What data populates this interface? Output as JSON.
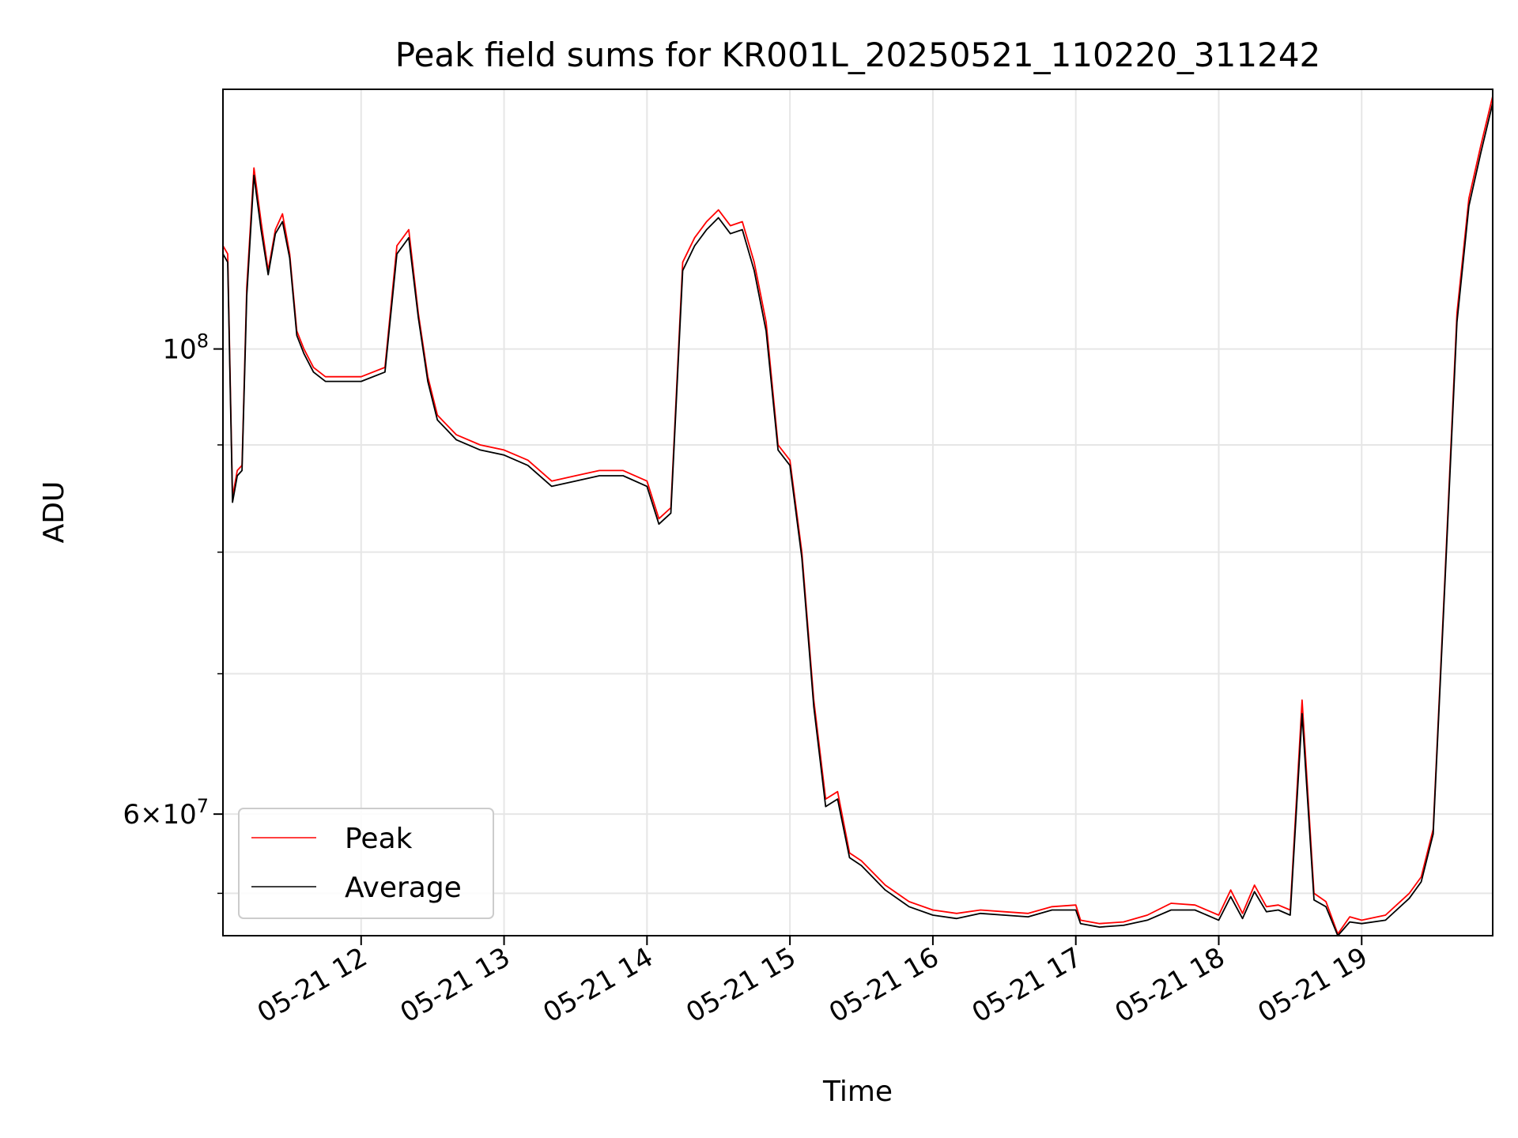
{
  "chart_data": {
    "type": "line",
    "title": "Peak field sums for KR001L_20250521_110220_311242",
    "xlabel": "Time",
    "ylabel": "ADU",
    "yscale": "log",
    "xlim": [
      "2025-05-21 11:02",
      "2025-05-21 19:55"
    ],
    "ylim": [
      52500000,
      133000000
    ],
    "grid": true,
    "legend_position": "lower-left",
    "x_ticks": [
      "05-21 12",
      "05-21 13",
      "05-21 14",
      "05-21 15",
      "05-21 16",
      "05-21 17",
      "05-21 18",
      "05-21 19"
    ],
    "y_ticks_major": [
      {
        "value": 100000000,
        "label": "10^8"
      },
      {
        "value": 60000000,
        "label": "6×10^7"
      }
    ],
    "y_ticks_minor": [
      55000000,
      70000000,
      80000000,
      90000000
    ],
    "x": [
      "2025-05-21 11:02",
      "2025-05-21 11:04",
      "2025-05-21 11:06",
      "2025-05-21 11:08",
      "2025-05-21 11:10",
      "2025-05-21 11:12",
      "2025-05-21 11:15",
      "2025-05-21 11:18",
      "2025-05-21 11:21",
      "2025-05-21 11:24",
      "2025-05-21 11:27",
      "2025-05-21 11:30",
      "2025-05-21 11:33",
      "2025-05-21 11:36",
      "2025-05-21 11:40",
      "2025-05-21 11:45",
      "2025-05-21 11:50",
      "2025-05-21 12:00",
      "2025-05-21 12:10",
      "2025-05-21 12:15",
      "2025-05-21 12:20",
      "2025-05-21 12:24",
      "2025-05-21 12:28",
      "2025-05-21 12:32",
      "2025-05-21 12:36",
      "2025-05-21 12:40",
      "2025-05-21 12:50",
      "2025-05-21 13:00",
      "2025-05-21 13:10",
      "2025-05-21 13:20",
      "2025-05-21 13:30",
      "2025-05-21 13:40",
      "2025-05-21 13:50",
      "2025-05-21 14:00",
      "2025-05-21 14:05",
      "2025-05-21 14:10",
      "2025-05-21 14:15",
      "2025-05-21 14:20",
      "2025-05-21 14:25",
      "2025-05-21 14:30",
      "2025-05-21 14:35",
      "2025-05-21 14:40",
      "2025-05-21 14:45",
      "2025-05-21 14:50",
      "2025-05-21 14:55",
      "2025-05-21 15:00",
      "2025-05-21 15:05",
      "2025-05-21 15:10",
      "2025-05-21 15:15",
      "2025-05-21 15:20",
      "2025-05-21 15:25",
      "2025-05-21 15:30",
      "2025-05-21 15:40",
      "2025-05-21 15:50",
      "2025-05-21 16:00",
      "2025-05-21 16:10",
      "2025-05-21 16:20",
      "2025-05-21 16:30",
      "2025-05-21 16:40",
      "2025-05-21 16:50",
      "2025-05-21 17:00",
      "2025-05-21 17:02",
      "2025-05-21 17:10",
      "2025-05-21 17:20",
      "2025-05-21 17:30",
      "2025-05-21 17:40",
      "2025-05-21 17:50",
      "2025-05-21 18:00",
      "2025-05-21 18:05",
      "2025-05-21 18:10",
      "2025-05-21 18:15",
      "2025-05-21 18:20",
      "2025-05-21 18:25",
      "2025-05-21 18:30",
      "2025-05-21 18:35",
      "2025-05-21 18:40",
      "2025-05-21 18:45",
      "2025-05-21 18:50",
      "2025-05-21 18:55",
      "2025-05-21 19:00",
      "2025-05-21 19:10",
      "2025-05-21 19:20",
      "2025-05-21 19:25",
      "2025-05-21 19:30",
      "2025-05-21 19:35",
      "2025-05-21 19:40",
      "2025-05-21 19:45",
      "2025-05-21 19:50",
      "2025-05-21 19:55"
    ],
    "series": [
      {
        "name": "Peak",
        "color": "#ff0000",
        "values": [
          112000000,
          111000000,
          85000000,
          87500000,
          88000000,
          107000000,
          122000000,
          115000000,
          109000000,
          114000000,
          116000000,
          111000000,
          102000000,
          100000000,
          98000000,
          97000000,
          97000000,
          97000000,
          98000000,
          112000000,
          114000000,
          104000000,
          97000000,
          93000000,
          92000000,
          91000000,
          90000000,
          89500000,
          88500000,
          86500000,
          87000000,
          87500000,
          87500000,
          86500000,
          83000000,
          84000000,
          110000000,
          113000000,
          115000000,
          116500000,
          114500000,
          115000000,
          110000000,
          103000000,
          90000000,
          88500000,
          80000000,
          68000000,
          61000000,
          61500000,
          57500000,
          57000000,
          55500000,
          54500000,
          54000000,
          53800000,
          54000000,
          53900000,
          53800000,
          54200000,
          54300000,
          53400000,
          53200000,
          53300000,
          53700000,
          54400000,
          54300000,
          53700000,
          55200000,
          53800000,
          55500000,
          54200000,
          54300000,
          54000000,
          68000000,
          55000000,
          54500000,
          52600000,
          53600000,
          53400000,
          53700000,
          55000000,
          56000000,
          59000000,
          78000000,
          104000000,
          118000000,
          125000000,
          132000000
        ]
      },
      {
        "name": "Average",
        "color": "#000000",
        "values": [
          111000000,
          110000000,
          84500000,
          87000000,
          87500000,
          106000000,
          121000000,
          114000000,
          108500000,
          113500000,
          115000000,
          110500000,
          101500000,
          99500000,
          97500000,
          96500000,
          96500000,
          96500000,
          97500000,
          111000000,
          113000000,
          103500000,
          96500000,
          92500000,
          91500000,
          90500000,
          89500000,
          89000000,
          88000000,
          86000000,
          86500000,
          87000000,
          87000000,
          86000000,
          82500000,
          83500000,
          109000000,
          112000000,
          114000000,
          115500000,
          113500000,
          114000000,
          109000000,
          102000000,
          89500000,
          88000000,
          79500000,
          67500000,
          60500000,
          61000000,
          57200000,
          56700000,
          55200000,
          54200000,
          53700000,
          53500000,
          53800000,
          53700000,
          53600000,
          54000000,
          54000000,
          53200000,
          53000000,
          53100000,
          53400000,
          54000000,
          54000000,
          53400000,
          54800000,
          53500000,
          55100000,
          53900000,
          54000000,
          53700000,
          67000000,
          54600000,
          54200000,
          52500000,
          53300000,
          53200000,
          53400000,
          54700000,
          55700000,
          58700000,
          77500000,
          103000000,
          117000000,
          124000000,
          131000000
        ]
      }
    ]
  }
}
